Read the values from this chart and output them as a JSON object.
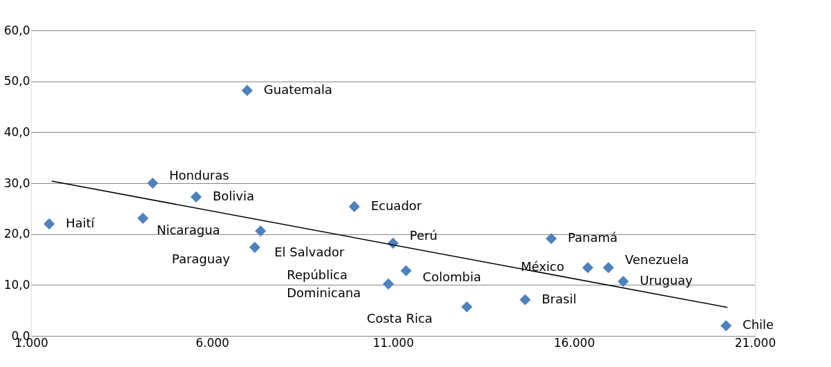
{
  "chart_data": {
    "type": "scatter",
    "grid": "y",
    "xlim": [
      1000,
      21000
    ],
    "ylim": [
      0,
      60
    ],
    "xticks": [
      {
        "value": 1000,
        "label": "1.000"
      },
      {
        "value": 6000,
        "label": "6.000"
      },
      {
        "value": 11000,
        "label": "11.000"
      },
      {
        "value": 16000,
        "label": "16.000"
      },
      {
        "value": 21000,
        "label": "21.000"
      }
    ],
    "yticks": [
      {
        "value": 0,
        "label": "0,0"
      },
      {
        "value": 10,
        "label": "10,0"
      },
      {
        "value": 20,
        "label": "20,0"
      },
      {
        "value": 30,
        "label": "30,0"
      },
      {
        "value": 40,
        "label": "40,0"
      },
      {
        "value": 50,
        "label": "50,0"
      },
      {
        "value": 60,
        "label": "60,0"
      }
    ],
    "series": [
      {
        "marker": "diamond",
        "color": "#4f81bd",
        "x": [
          1500,
          4360,
          4090,
          5560,
          6970,
          7340,
          7180,
          9930,
          11000,
          11360,
          10870,
          13040,
          14650,
          15370,
          16380,
          16950,
          17360,
          20200
        ],
        "values": [
          22.0,
          30.0,
          23.1,
          27.3,
          48.2,
          20.6,
          17.4,
          25.4,
          18.2,
          12.8,
          10.2,
          5.7,
          7.1,
          19.1,
          13.4,
          13.4,
          10.7,
          2.0
        ]
      },
      {
        "type": "line",
        "marker": "none",
        "color": "#000000",
        "x": [
          1570,
          20240
        ],
        "values": [
          30.4,
          5.6
        ]
      }
    ],
    "annotations": [
      {
        "text": "Guatemala",
        "x": 6970,
        "y": 48.2
      },
      {
        "text": "Honduras",
        "x": 4360,
        "y": 30.0
      },
      {
        "text": "Haití",
        "x": 1500,
        "y": 22.0
      },
      {
        "text": "Bolivia",
        "x": 5560,
        "y": 27.3
      },
      {
        "text": "Nicaragua",
        "x": 4090,
        "y": 23.1
      },
      {
        "text": "Ecuador",
        "x": 9930,
        "y": 25.4
      },
      {
        "text": "El Salvador",
        "x": 7340,
        "y": 20.6
      },
      {
        "text": "Paraguay",
        "x": 7180,
        "y": 17.4
      },
      {
        "text": "Perú",
        "x": 11000,
        "y": 18.2
      },
      {
        "text": "Colombia",
        "x": 11360,
        "y": 12.8
      },
      {
        "text": "República\nDominicana",
        "x": 10870,
        "y": 10.2
      },
      {
        "text": "Costa Rica",
        "x": 13040,
        "y": 5.7
      },
      {
        "text": "Brasil",
        "x": 14650,
        "y": 7.1
      },
      {
        "text": "Panamá",
        "x": 15370,
        "y": 19.1
      },
      {
        "text": "México",
        "x": 16380,
        "y": 13.4
      },
      {
        "text": "Venezuela",
        "x": 16950,
        "y": 13.4
      },
      {
        "text": "Uruguay",
        "x": 17360,
        "y": 10.7
      },
      {
        "text": "Chile",
        "x": 20200,
        "y": 2.0
      }
    ]
  }
}
